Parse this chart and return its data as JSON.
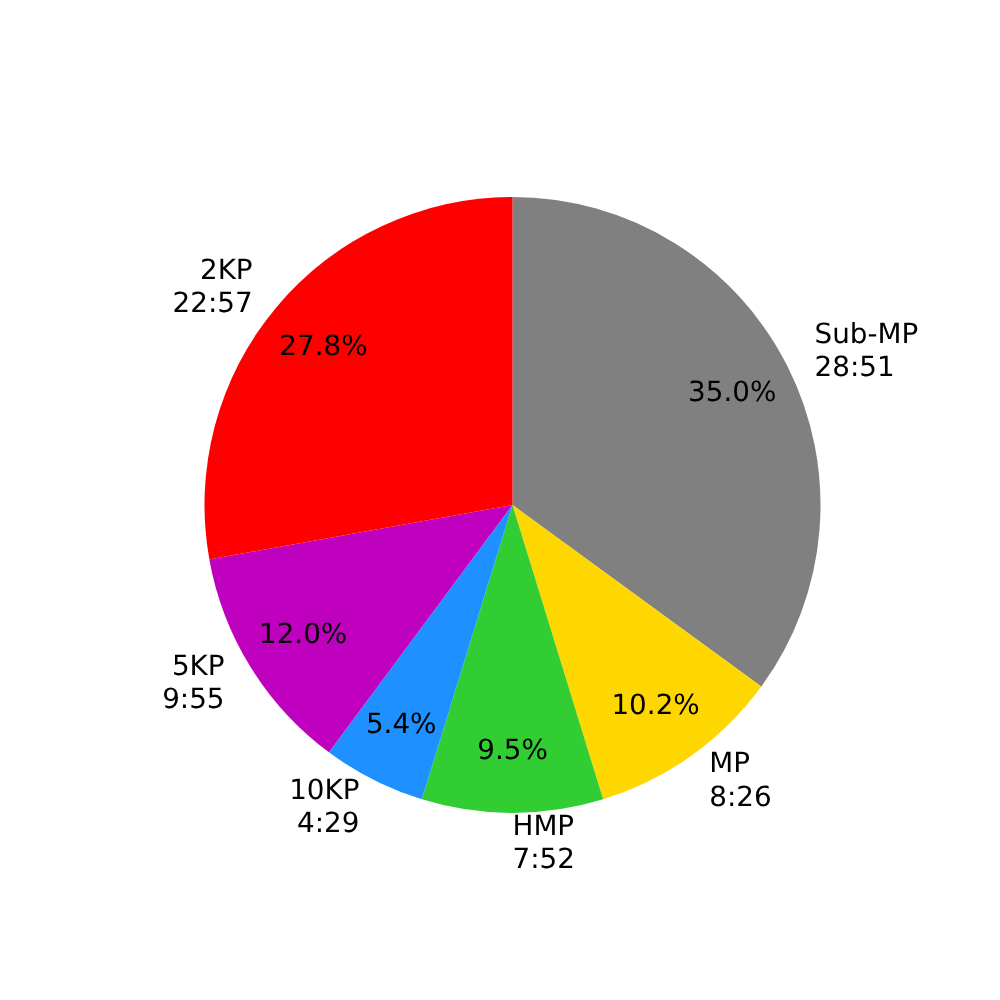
{
  "chart_data": {
    "type": "pie",
    "categories": [
      "Sub-MP\n28:51",
      "MP\n8:26",
      "HMP\n7:52",
      "10KP\n4:29",
      "5KP\n9:55",
      "2KP\n22:57"
    ],
    "values": [
      35.0,
      10.2,
      9.5,
      5.4,
      12.0,
      27.8
    ],
    "colors": [
      "#808080",
      "#ffd700",
      "#32cd32",
      "#1e90ff",
      "#bf00bf",
      "#ff0000"
    ],
    "value_labels": [
      "35.0%",
      "10.2%",
      "9.5%",
      "5.4%",
      "12.0%",
      "27.8%"
    ]
  }
}
